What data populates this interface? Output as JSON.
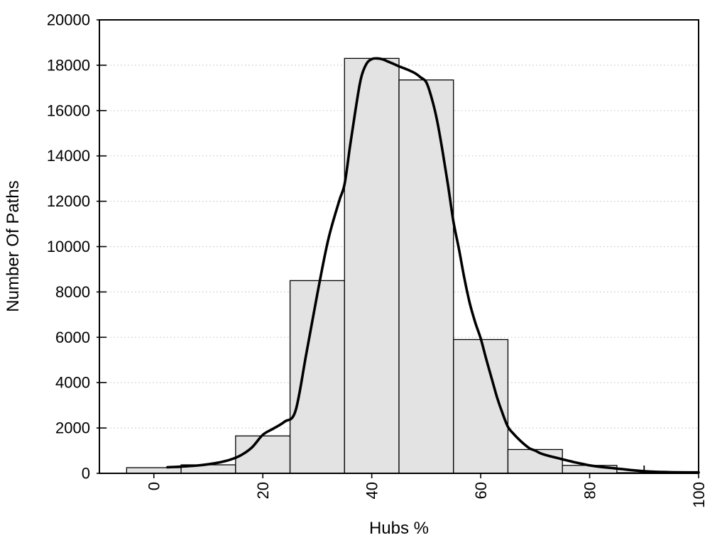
{
  "figure": {
    "background": "#ffffff"
  },
  "chart_data": {
    "type": "bar",
    "subtype": "histogram-with-smoothed-frequency-curve",
    "title": "",
    "xlabel": "Hubs %",
    "ylabel": "Number Of Paths",
    "xlim": [
      -10,
      100
    ],
    "ylim": [
      0,
      20000
    ],
    "xticks": [
      0,
      20,
      40,
      60,
      80,
      100
    ],
    "yticks": [
      0,
      2000,
      4000,
      6000,
      8000,
      10000,
      12000,
      14000,
      16000,
      18000,
      20000
    ],
    "grid": "horizontal-dotted",
    "legend": "none",
    "x_tick_label_rotation_deg": -90,
    "colors": {
      "bar_fill": "#e3e3e3",
      "bar_stroke": "#000000",
      "curve": "#000000",
      "gridline": "#c8c8c8",
      "frame": "#000000"
    },
    "bars": {
      "bin_width": 10,
      "centers": [
        0,
        10,
        20,
        30,
        40,
        50,
        60,
        70,
        80,
        90
      ],
      "values": [
        250,
        375,
        1650,
        8500,
        18300,
        17350,
        5900,
        1050,
        350,
        30
      ]
    },
    "spike": {
      "x": 90,
      "value": 345
    },
    "curve_points": [
      [
        2.5,
        270
      ],
      [
        4,
        285
      ],
      [
        6,
        310
      ],
      [
        8,
        345
      ],
      [
        10,
        400
      ],
      [
        12,
        480
      ],
      [
        14,
        600
      ],
      [
        16,
        800
      ],
      [
        18,
        1140
      ],
      [
        20,
        1700
      ],
      [
        22,
        1980
      ],
      [
        24,
        2280
      ],
      [
        26,
        2750
      ],
      [
        28,
        5300
      ],
      [
        30,
        7900
      ],
      [
        32,
        10300
      ],
      [
        34,
        12000
      ],
      [
        35,
        12750
      ],
      [
        36,
        14400
      ],
      [
        37,
        16000
      ],
      [
        38,
        17400
      ],
      [
        39,
        18050
      ],
      [
        40,
        18270
      ],
      [
        41,
        18300
      ],
      [
        42,
        18260
      ],
      [
        43,
        18160
      ],
      [
        44,
        18060
      ],
      [
        45,
        17950
      ],
      [
        46,
        17860
      ],
      [
        47,
        17760
      ],
      [
        48,
        17640
      ],
      [
        49,
        17460
      ],
      [
        50,
        17250
      ],
      [
        51,
        16550
      ],
      [
        52,
        15550
      ],
      [
        53,
        14200
      ],
      [
        54,
        12700
      ],
      [
        55,
        11100
      ],
      [
        56,
        9900
      ],
      [
        57,
        8600
      ],
      [
        58,
        7500
      ],
      [
        59,
        6650
      ],
      [
        60,
        5950
      ],
      [
        61,
        5050
      ],
      [
        62,
        4200
      ],
      [
        63,
        3350
      ],
      [
        64,
        2650
      ],
      [
        65,
        2050
      ],
      [
        66,
        1750
      ],
      [
        67,
        1500
      ],
      [
        68,
        1280
      ],
      [
        69,
        1100
      ],
      [
        70,
        1000
      ],
      [
        71,
        880
      ],
      [
        72,
        800
      ],
      [
        73,
        740
      ],
      [
        74,
        680
      ],
      [
        75,
        620
      ],
      [
        76,
        560
      ],
      [
        77,
        500
      ],
      [
        78,
        450
      ],
      [
        79,
        400
      ],
      [
        80,
        350
      ],
      [
        82,
        285
      ],
      [
        84,
        235
      ],
      [
        85,
        210
      ],
      [
        86,
        185
      ],
      [
        88,
        135
      ],
      [
        90,
        95
      ],
      [
        92,
        70
      ],
      [
        94,
        55
      ],
      [
        96,
        45
      ],
      [
        98,
        42
      ],
      [
        100,
        40
      ]
    ]
  }
}
